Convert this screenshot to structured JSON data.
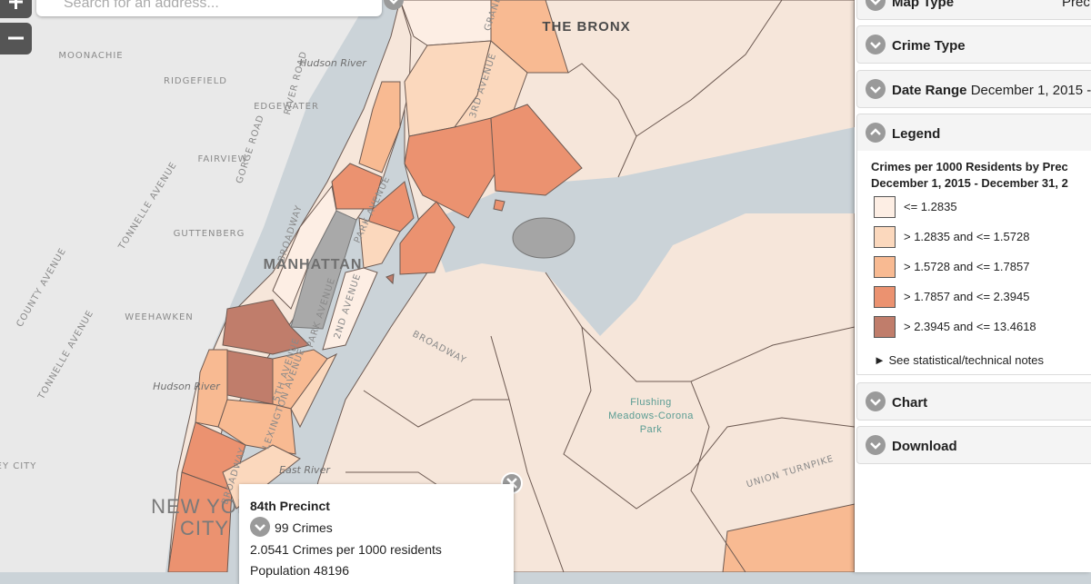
{
  "search": {
    "placeholder": "Search for an address..."
  },
  "map": {
    "labels": [
      "MOONACHIE",
      "Hudson River",
      "RIDGEFIELD",
      "RIVER ROAD",
      "EDGEWATER",
      "GORGE ROAD",
      "FAIRVIEW",
      "TONNELLE AVENUE",
      "GUTTENBERG",
      "BROADWAY",
      "PARK AVENUE",
      "MANHATTAN",
      "COUNTY AVENUE",
      "WEEHAWKEN",
      "PARK AVENUE",
      "2ND AVENUE",
      "TONNELLE AVENUE",
      "BROADWAY",
      "5TH AVENUE",
      "LEXINGTON AVENUE",
      "Hudson River",
      "Flushing",
      "Meadows-Corona",
      "Park",
      "East River",
      "BROADWAY",
      "UNION TURNPIKE",
      "EY CITY",
      "NEW YOR",
      "CITY",
      "THE BRONX",
      "3RD AVENUE",
      "GRAND"
    ],
    "popup": {
      "title": "84th Precinct",
      "crimes": "99 Crimes",
      "rate": "2.0541 Crimes per 1000 residents",
      "population": "Population 48196"
    }
  },
  "panel": {
    "map_type": {
      "label": "Map Type",
      "value": "Prec"
    },
    "crime_type": {
      "label": "Crime Type"
    },
    "date_range": {
      "label": "Date Range",
      "value": "December 1, 2015 -"
    },
    "legend": {
      "label": "Legend",
      "title": "Crimes per 1000 Residents by Prec",
      "subtitle": "December 1, 2015 - December 31, 2",
      "items": [
        {
          "label": "<= 1.2835",
          "color": "#fdeee4"
        },
        {
          "label": "> 1.2835 and <= 1.5728",
          "color": "#fbd8bd"
        },
        {
          "label": "> 1.5728 and <= 1.7857",
          "color": "#f8ba92"
        },
        {
          "label": "> 1.7857 and <= 2.3945",
          "color": "#eb9270"
        },
        {
          "label": "> 2.3945 and <= 13.4618",
          "color": "#c07d6b"
        }
      ],
      "notes": "► See statistical/technical notes"
    },
    "chart": {
      "label": "Chart"
    },
    "download": {
      "label": "Download"
    }
  }
}
